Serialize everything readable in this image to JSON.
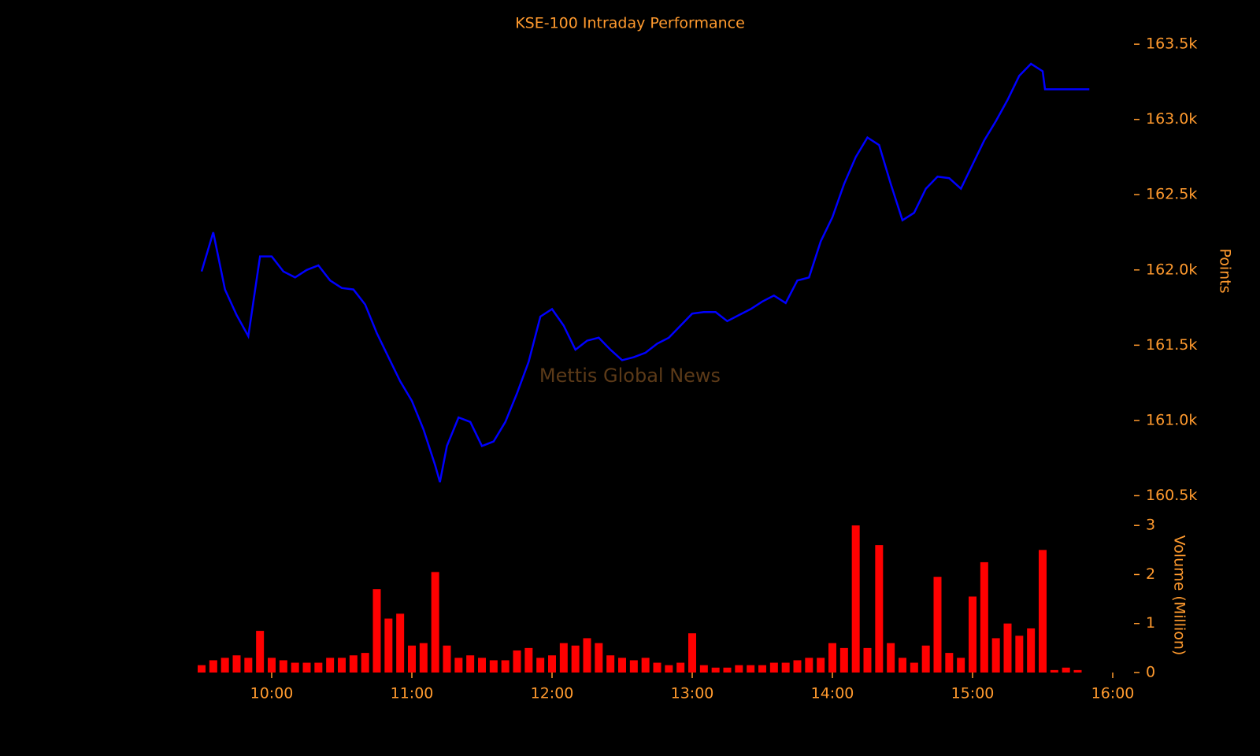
{
  "chart_data": [
    {
      "type": "line",
      "title": "KSE-100 Intraday Performance",
      "ylabel": "Points",
      "watermark": "Mettis Global News",
      "color": "#0000ff",
      "x": [
        "09:30",
        "09:35",
        "09:40",
        "09:45",
        "09:50",
        "09:55",
        "10:00",
        "10:05",
        "10:10",
        "10:15",
        "10:20",
        "10:25",
        "10:30",
        "10:35",
        "10:40",
        "10:45",
        "10:50",
        "10:55",
        "11:00",
        "11:05",
        "11:10",
        "11:12",
        "11:15",
        "11:20",
        "11:25",
        "11:30",
        "11:35",
        "11:40",
        "11:45",
        "11:50",
        "11:55",
        "12:00",
        "12:05",
        "12:10",
        "12:15",
        "12:20",
        "12:25",
        "12:30",
        "12:35",
        "12:40",
        "12:45",
        "12:50",
        "12:55",
        "13:00",
        "13:05",
        "13:10",
        "13:15",
        "13:20",
        "13:25",
        "13:30",
        "13:35",
        "13:40",
        "13:45",
        "13:50",
        "13:55",
        "14:00",
        "14:05",
        "14:10",
        "14:15",
        "14:20",
        "14:25",
        "14:30",
        "14:35",
        "14:40",
        "14:45",
        "14:50",
        "14:55",
        "15:00",
        "15:05",
        "15:10",
        "15:15",
        "15:20",
        "15:25",
        "15:30",
        "15:31",
        "15:35",
        "15:40",
        "15:45",
        "15:50"
      ],
      "values": [
        161990,
        162250,
        161870,
        161700,
        161560,
        162090,
        162090,
        161990,
        161950,
        162000,
        162030,
        161930,
        161880,
        161870,
        161770,
        161580,
        161420,
        161260,
        161130,
        160940,
        160700,
        160590,
        160830,
        161020,
        160990,
        160830,
        160860,
        160990,
        161180,
        161390,
        161690,
        161740,
        161630,
        161470,
        161530,
        161550,
        161470,
        161400,
        161420,
        161450,
        161510,
        161550,
        161630,
        161710,
        161720,
        161720,
        161660,
        161700,
        161740,
        161790,
        161830,
        161780,
        161930,
        161950,
        162190,
        162350,
        162570,
        162750,
        162880,
        162830,
        162570,
        162330,
        162380,
        162540,
        162620,
        162610,
        162540,
        162700,
        162860,
        162990,
        163130,
        163290,
        163370,
        163320,
        163200,
        163200,
        163200,
        163200,
        163200
      ],
      "xlim": [
        "09:30",
        "16:00"
      ],
      "ylim": [
        160450,
        163600
      ],
      "yticks": [
        {
          "value": 160500,
          "label": "160.5k"
        },
        {
          "value": 161000,
          "label": "161.0k"
        },
        {
          "value": 161500,
          "label": "161.5k"
        },
        {
          "value": 162000,
          "label": "162.0k"
        },
        {
          "value": 162500,
          "label": "162.5k"
        },
        {
          "value": 163000,
          "label": "163.0k"
        },
        {
          "value": 163500,
          "label": "163.5k"
        }
      ]
    },
    {
      "type": "bar",
      "ylabel": "Volume (Million)",
      "color": "#ff0000",
      "x": [
        "09:30",
        "09:35",
        "09:40",
        "09:45",
        "09:50",
        "09:55",
        "10:00",
        "10:05",
        "10:10",
        "10:15",
        "10:20",
        "10:25",
        "10:30",
        "10:35",
        "10:40",
        "10:45",
        "10:50",
        "10:55",
        "11:00",
        "11:05",
        "11:10",
        "11:15",
        "11:20",
        "11:25",
        "11:30",
        "11:35",
        "11:40",
        "11:45",
        "11:50",
        "11:55",
        "12:00",
        "12:05",
        "12:10",
        "12:15",
        "12:20",
        "12:25",
        "12:30",
        "12:35",
        "12:40",
        "12:45",
        "12:50",
        "12:55",
        "13:00",
        "13:05",
        "13:10",
        "13:15",
        "13:20",
        "13:25",
        "13:30",
        "13:35",
        "13:40",
        "13:45",
        "13:50",
        "13:55",
        "14:00",
        "14:05",
        "14:10",
        "14:15",
        "14:20",
        "14:25",
        "14:30",
        "14:35",
        "14:40",
        "14:45",
        "14:50",
        "14:55",
        "15:00",
        "15:05",
        "15:10",
        "15:15",
        "15:20",
        "15:25",
        "15:30",
        "15:35",
        "15:40",
        "15:45"
      ],
      "values": [
        0.15,
        0.25,
        0.3,
        0.35,
        0.3,
        0.85,
        0.3,
        0.25,
        0.2,
        0.2,
        0.2,
        0.3,
        0.3,
        0.35,
        0.4,
        1.7,
        1.1,
        1.2,
        0.55,
        0.6,
        2.05,
        0.55,
        0.3,
        0.35,
        0.3,
        0.25,
        0.25,
        0.45,
        0.5,
        0.3,
        0.35,
        0.6,
        0.55,
        0.7,
        0.6,
        0.35,
        0.3,
        0.25,
        0.3,
        0.2,
        0.15,
        0.2,
        0.8,
        0.15,
        0.1,
        0.1,
        0.15,
        0.15,
        0.15,
        0.2,
        0.2,
        0.25,
        0.3,
        0.3,
        0.6,
        0.5,
        3.0,
        0.5,
        2.6,
        0.6,
        0.3,
        0.2,
        0.55,
        1.95,
        0.4,
        0.3,
        1.55,
        2.25,
        0.7,
        1.0,
        0.75,
        0.9,
        2.5,
        0.05,
        0.1,
        0.05
      ],
      "xlim": [
        "09:30",
        "16:00"
      ],
      "xticks": [
        "10:00",
        "11:00",
        "12:00",
        "13:00",
        "14:00",
        "15:00",
        "16:00"
      ],
      "ylim": [
        0,
        3.1
      ],
      "yticks": [
        0,
        1,
        2,
        3
      ]
    }
  ]
}
